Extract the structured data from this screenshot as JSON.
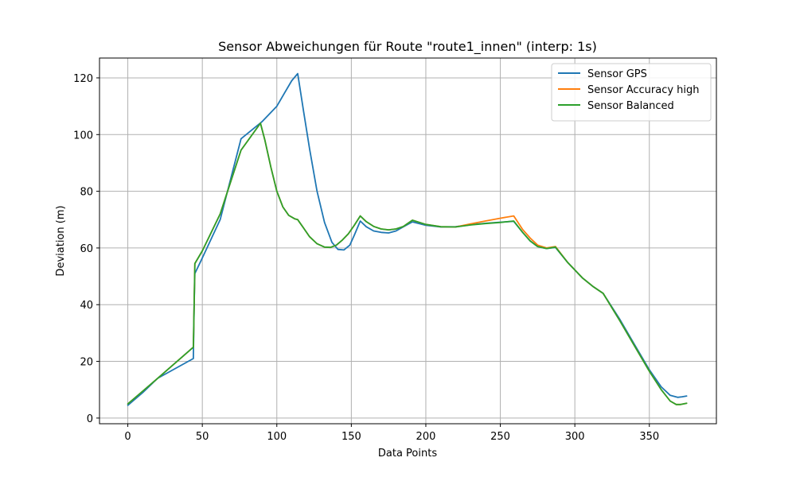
{
  "chart_data": {
    "type": "line",
    "title": "Sensor Abweichungen für Route \"route1_innen\" (interp: 1s)",
    "xlabel": "Data Points",
    "ylabel": "Deviation (m)",
    "xlim": [
      -19,
      395
    ],
    "ylim": [
      -2,
      127
    ],
    "xticks": [
      0,
      50,
      100,
      150,
      200,
      250,
      300,
      350
    ],
    "yticks": [
      0,
      20,
      40,
      60,
      80,
      100,
      120
    ],
    "grid": true,
    "legend_position": "top-right",
    "series": [
      {
        "name": "Sensor GPS",
        "color": "#1f77b4",
        "points": [
          [
            0,
            4.5
          ],
          [
            10,
            9
          ],
          [
            20,
            14
          ],
          [
            44,
            21
          ],
          [
            44.5,
            40
          ],
          [
            45,
            51
          ],
          [
            50,
            56.5
          ],
          [
            62,
            70
          ],
          [
            76,
            98.5
          ],
          [
            90,
            104.5
          ],
          [
            100,
            110
          ],
          [
            105,
            114.5
          ],
          [
            110,
            119
          ],
          [
            114,
            121.5
          ],
          [
            118,
            108
          ],
          [
            122,
            95
          ],
          [
            127,
            80
          ],
          [
            132,
            69
          ],
          [
            137,
            62
          ],
          [
            141,
            59.5
          ],
          [
            145,
            59.3
          ],
          [
            149,
            61
          ],
          [
            152,
            64.5
          ],
          [
            156,
            69.5
          ],
          [
            160,
            67.5
          ],
          [
            165,
            66
          ],
          [
            170,
            65.5
          ],
          [
            175,
            65.3
          ],
          [
            180,
            66
          ],
          [
            185,
            67.5
          ],
          [
            191,
            69.2
          ],
          [
            200,
            68
          ],
          [
            210,
            67.4
          ],
          [
            220,
            67.5
          ],
          [
            230,
            68.2
          ],
          [
            240,
            68.7
          ],
          [
            250,
            69.1
          ],
          [
            259,
            69.4
          ],
          [
            265,
            65.5
          ],
          [
            270,
            62.5
          ],
          [
            275,
            60.5
          ],
          [
            281,
            59.8
          ],
          [
            287,
            60.2
          ],
          [
            295,
            55
          ],
          [
            305,
            49.5
          ],
          [
            312,
            46.5
          ],
          [
            319,
            44
          ],
          [
            330,
            35
          ],
          [
            340,
            26
          ],
          [
            350,
            17
          ],
          [
            358,
            11
          ],
          [
            364,
            8
          ],
          [
            369,
            7.3
          ],
          [
            372,
            7.5
          ],
          [
            375,
            7.8
          ]
        ]
      },
      {
        "name": "Sensor Accuracy high",
        "color": "#ff7f0e",
        "points": [
          [
            0,
            5
          ],
          [
            10,
            9.5
          ],
          [
            20,
            14
          ],
          [
            44,
            25
          ],
          [
            44.5,
            40
          ],
          [
            45,
            54.5
          ],
          [
            50,
            59
          ],
          [
            62,
            72
          ],
          [
            76,
            94.5
          ],
          [
            89,
            104
          ],
          [
            92,
            98
          ],
          [
            96,
            88.5
          ],
          [
            100,
            80
          ],
          [
            104,
            74.5
          ],
          [
            108,
            71.5
          ],
          [
            112,
            70.3
          ],
          [
            114,
            70
          ],
          [
            118,
            67
          ],
          [
            122,
            64
          ],
          [
            127,
            61.5
          ],
          [
            132,
            60.3
          ],
          [
            136,
            60.2
          ],
          [
            140,
            61
          ],
          [
            144,
            62.8
          ],
          [
            148,
            65
          ],
          [
            152,
            68
          ],
          [
            156,
            71.3
          ],
          [
            160,
            69.3
          ],
          [
            165,
            67.6
          ],
          [
            170,
            66.7
          ],
          [
            175,
            66.4
          ],
          [
            180,
            66.7
          ],
          [
            185,
            67.6
          ],
          [
            191,
            69.8
          ],
          [
            200,
            68.3
          ],
          [
            210,
            67.5
          ],
          [
            220,
            67.4
          ],
          [
            230,
            68.5
          ],
          [
            240,
            69.5
          ],
          [
            250,
            70.5
          ],
          [
            259,
            71.3
          ],
          [
            265,
            66.5
          ],
          [
            270,
            63.5
          ],
          [
            275,
            61
          ],
          [
            281,
            60
          ],
          [
            287,
            60.5
          ],
          [
            295,
            55
          ],
          [
            305,
            49.5
          ],
          [
            312,
            46.5
          ],
          [
            319,
            44
          ],
          [
            330,
            34.5
          ],
          [
            340,
            25.5
          ],
          [
            350,
            16.5
          ],
          [
            358,
            10
          ],
          [
            364,
            6
          ],
          [
            368,
            4.8
          ],
          [
            371,
            4.8
          ],
          [
            375,
            5.2
          ]
        ]
      },
      {
        "name": "Sensor Balanced",
        "color": "#2ca02c",
        "points": [
          [
            0,
            5
          ],
          [
            10,
            9.5
          ],
          [
            20,
            14
          ],
          [
            44,
            25
          ],
          [
            44.5,
            40
          ],
          [
            45,
            54.5
          ],
          [
            50,
            59
          ],
          [
            62,
            72
          ],
          [
            76,
            94.5
          ],
          [
            89,
            104
          ],
          [
            92,
            98
          ],
          [
            96,
            88.5
          ],
          [
            100,
            80
          ],
          [
            104,
            74.5
          ],
          [
            108,
            71.5
          ],
          [
            112,
            70.3
          ],
          [
            114,
            70
          ],
          [
            118,
            67
          ],
          [
            122,
            64
          ],
          [
            127,
            61.5
          ],
          [
            132,
            60.3
          ],
          [
            136,
            60.2
          ],
          [
            140,
            61
          ],
          [
            144,
            62.8
          ],
          [
            148,
            65
          ],
          [
            152,
            68
          ],
          [
            156,
            71.3
          ],
          [
            160,
            69.3
          ],
          [
            165,
            67.6
          ],
          [
            170,
            66.7
          ],
          [
            175,
            66.4
          ],
          [
            180,
            66.7
          ],
          [
            185,
            67.6
          ],
          [
            191,
            69.8
          ],
          [
            200,
            68.3
          ],
          [
            210,
            67.5
          ],
          [
            220,
            67.4
          ],
          [
            230,
            68.1
          ],
          [
            240,
            68.6
          ],
          [
            250,
            69
          ],
          [
            259,
            69.5
          ],
          [
            265,
            65.5
          ],
          [
            270,
            62.5
          ],
          [
            275,
            60.5
          ],
          [
            281,
            59.8
          ],
          [
            287,
            60.3
          ],
          [
            295,
            55
          ],
          [
            305,
            49.5
          ],
          [
            312,
            46.5
          ],
          [
            319,
            44
          ],
          [
            330,
            34.5
          ],
          [
            340,
            25.5
          ],
          [
            350,
            16.5
          ],
          [
            358,
            10
          ],
          [
            364,
            6
          ],
          [
            368,
            4.8
          ],
          [
            371,
            4.8
          ],
          [
            375,
            5.2
          ]
        ]
      }
    ]
  }
}
